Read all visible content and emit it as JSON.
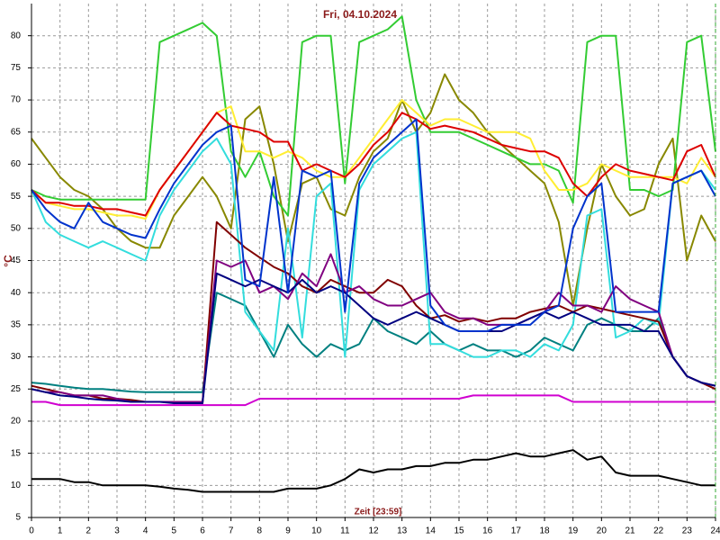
{
  "chart_data": {
    "type": "line",
    "title": "Fri, 04.10.2024",
    "ylabel": "°C",
    "xlabel": "Zeit [23:59]",
    "grid": true,
    "xlim": [
      0,
      24
    ],
    "ylim": [
      5,
      85
    ],
    "xticks": [
      0,
      1,
      2,
      3,
      4,
      5,
      6,
      7,
      8,
      9,
      10,
      11,
      12,
      13,
      14,
      15,
      16,
      17,
      18,
      19,
      20,
      21,
      22,
      23,
      24
    ],
    "yticks": [
      5,
      10,
      15,
      20,
      25,
      30,
      35,
      40,
      45,
      50,
      55,
      60,
      65,
      70,
      75,
      80
    ],
    "x": [
      0,
      0.5,
      1,
      1.5,
      2,
      2.5,
      3,
      3.5,
      4,
      4.5,
      5,
      5.5,
      6,
      6.5,
      7,
      7.5,
      8,
      8.5,
      9,
      9.5,
      10,
      10.5,
      11,
      11.5,
      12,
      12.5,
      13,
      13.5,
      14,
      14.5,
      15,
      15.5,
      16,
      16.5,
      17,
      17.5,
      18,
      18.5,
      19,
      19.5,
      20,
      20.5,
      21,
      21.5,
      22,
      22.5,
      23,
      23.5,
      24
    ],
    "series": [
      {
        "color": "#008080",
        "values": [
          26,
          25.8,
          25.5,
          25.2,
          25,
          25,
          24.8,
          24.6,
          24.5,
          24.5,
          24.5,
          24.5,
          24.5,
          40,
          39,
          38,
          34,
          30,
          35,
          32,
          30,
          32,
          31,
          32,
          36,
          34,
          33,
          32,
          34,
          32,
          31,
          32,
          31,
          31,
          30,
          31,
          33,
          32,
          31,
          35,
          36,
          35,
          34,
          34,
          36,
          30,
          27,
          26,
          25.5
        ]
      },
      {
        "color": "#888800",
        "values": [
          64,
          61,
          58,
          56,
          55,
          53,
          50,
          48,
          47,
          47,
          52,
          55,
          58,
          55,
          50,
          67,
          69,
          60,
          48,
          57,
          58,
          53,
          52,
          58,
          62,
          64,
          70,
          65,
          68,
          74,
          70,
          68,
          65,
          63,
          61,
          59,
          57,
          51,
          38,
          50,
          60,
          55,
          52,
          53,
          60,
          64,
          45,
          52,
          48
        ]
      },
      {
        "color": "#33dddd",
        "values": [
          56,
          51,
          49,
          48,
          47,
          48,
          47,
          46,
          45,
          52,
          56,
          59,
          62,
          64,
          60,
          37,
          34,
          31,
          50,
          33,
          55,
          57,
          30,
          56,
          60,
          62,
          64,
          65,
          32,
          32,
          31,
          30,
          30,
          31,
          31,
          30,
          32,
          31,
          35,
          52,
          53,
          33,
          34,
          36,
          35,
          57,
          58,
          59,
          56
        ]
      },
      {
        "color": "#33cc33",
        "values": [
          56,
          55,
          54.5,
          54.5,
          54.5,
          54.5,
          54.5,
          54.5,
          54.5,
          79,
          80,
          81,
          82,
          80,
          62,
          58,
          62,
          55,
          52,
          79,
          80,
          80,
          57,
          79,
          80,
          81,
          83,
          70,
          65,
          65,
          65,
          64,
          63,
          62,
          61,
          60,
          60,
          59,
          54,
          79,
          80,
          80,
          56,
          56,
          55,
          56,
          79,
          80,
          62
        ]
      },
      {
        "color": "#ffee33",
        "values": [
          56,
          54,
          53.5,
          53,
          53,
          52.5,
          52,
          52,
          51.5,
          56,
          59,
          62,
          65,
          68,
          69,
          62,
          62,
          61,
          62,
          61,
          59,
          58,
          58,
          61,
          64,
          67,
          70,
          68,
          66,
          67,
          67,
          66,
          65,
          65,
          65,
          64,
          59,
          56,
          56,
          57,
          60,
          59,
          58,
          58,
          58,
          58,
          57,
          61,
          58
        ]
      },
      {
        "color": "#dd0000",
        "values": [
          56,
          54,
          54,
          53.5,
          53.5,
          53,
          53,
          52.5,
          52,
          56,
          59,
          62,
          65,
          68,
          66,
          65.5,
          65,
          63.5,
          63.5,
          59,
          60,
          59,
          58,
          60,
          63,
          65,
          68,
          67,
          65.5,
          66,
          65.5,
          65,
          64,
          63,
          62.5,
          62,
          62,
          61,
          57,
          55,
          58,
          60,
          59,
          58.5,
          58,
          57.5,
          62,
          63,
          58
        ]
      },
      {
        "color": "#800000",
        "values": [
          25.5,
          25,
          24.5,
          24,
          24,
          23.5,
          23.5,
          23.3,
          23,
          23,
          23,
          22.8,
          22.8,
          51,
          49,
          47,
          45.5,
          44,
          43,
          41,
          40,
          42,
          41,
          40,
          40,
          42,
          41,
          38,
          36,
          36.5,
          35.5,
          36,
          35.5,
          36,
          36,
          37,
          37.5,
          38,
          37,
          38,
          37.5,
          37,
          36.5,
          36,
          35.5,
          30,
          27,
          26,
          25
        ]
      },
      {
        "color": "#800080",
        "values": [
          25,
          24.5,
          24.5,
          24,
          24,
          24,
          23.5,
          23,
          23,
          23,
          23,
          23,
          23,
          45,
          44,
          45,
          40,
          41,
          39,
          43,
          41,
          46,
          40,
          41,
          39,
          38,
          38,
          39,
          40,
          37,
          36,
          36,
          35,
          35,
          35,
          36,
          37,
          40,
          38,
          38,
          37,
          41,
          39,
          38,
          37,
          30,
          27,
          26,
          25.5
        ]
      },
      {
        "color": "#000080",
        "values": [
          25,
          24.5,
          24,
          23.8,
          23.5,
          23.3,
          23.2,
          23,
          23,
          23,
          22.8,
          22.8,
          22.8,
          43,
          42,
          41,
          42,
          41,
          40,
          42,
          40,
          41,
          40,
          38,
          36,
          35,
          36,
          37,
          36,
          35,
          34,
          34,
          34,
          34,
          35,
          36,
          37,
          36,
          37,
          36,
          35,
          35,
          35,
          34,
          34,
          30,
          27,
          26,
          25.5
        ]
      },
      {
        "color": "#0033cc",
        "values": [
          56,
          53,
          51,
          50,
          54,
          51,
          50,
          49,
          48.5,
          53,
          57,
          60,
          63,
          65,
          66,
          42,
          41,
          58,
          40,
          59,
          58,
          59,
          37,
          57,
          61,
          63,
          65,
          67,
          38,
          35,
          34,
          34,
          34,
          35,
          35,
          35,
          37,
          38,
          50,
          55,
          57,
          37,
          37,
          37,
          37,
          57,
          58,
          59,
          55
        ]
      },
      {
        "color": "#d000d0",
        "values": [
          23,
          23,
          22.5,
          22.5,
          22.5,
          22.5,
          22.5,
          22.5,
          22.5,
          22.5,
          22.5,
          22.5,
          22.5,
          22.5,
          22.5,
          22.5,
          23.5,
          23.5,
          23.5,
          23.5,
          23.5,
          23.5,
          23.5,
          23.5,
          23.5,
          23.5,
          23.5,
          23.5,
          23.5,
          23.5,
          23.5,
          24,
          24,
          24,
          24,
          24,
          24,
          24,
          23,
          23,
          23,
          23,
          23,
          23,
          23,
          23,
          23,
          23,
          23
        ]
      },
      {
        "color": "#000000",
        "values": [
          11,
          11,
          11,
          10.5,
          10.5,
          10,
          10,
          10,
          10,
          9.8,
          9.5,
          9.3,
          9,
          9,
          9,
          9,
          9,
          9,
          9.5,
          9.5,
          9.5,
          10,
          11,
          12.5,
          12,
          12.5,
          12.5,
          13,
          13,
          13.5,
          13.5,
          14,
          14,
          14.5,
          15,
          14.5,
          14.5,
          15,
          15.5,
          14,
          14.5,
          12,
          11.5,
          11.5,
          11.5,
          11,
          10.5,
          10,
          10
        ]
      }
    ]
  }
}
